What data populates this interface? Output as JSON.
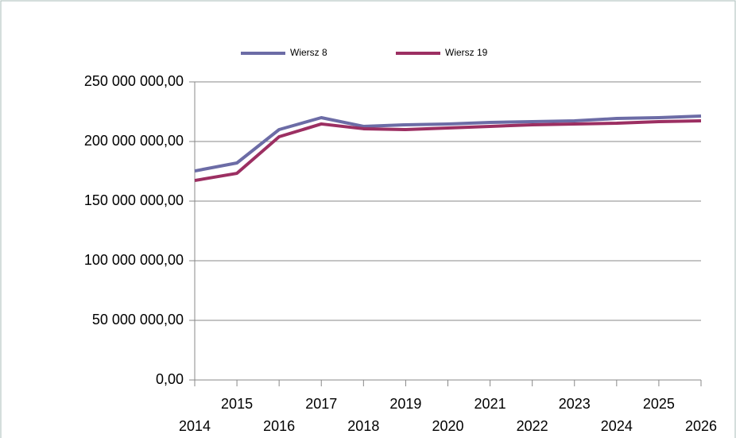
{
  "chart_data": {
    "type": "line",
    "categories": [
      "2014",
      "2015",
      "2016",
      "2017",
      "2018",
      "2019",
      "2020",
      "2021",
      "2022",
      "2023",
      "2024",
      "2025",
      "2026"
    ],
    "series": [
      {
        "name": "Wiersz 8",
        "color": "#6c6ca6",
        "values": [
          175300000,
          182000000,
          210000000,
          220000000,
          212700000,
          214000000,
          214700000,
          216000000,
          216700000,
          217300000,
          219300000,
          220000000,
          221300000
        ]
      },
      {
        "name": "Wiersz 19",
        "color": "#9c2f62",
        "values": [
          167300000,
          173300000,
          204000000,
          214700000,
          210700000,
          210000000,
          211300000,
          212700000,
          214000000,
          214700000,
          215300000,
          216700000,
          217300000
        ]
      }
    ],
    "ylim": [
      0,
      250000000
    ],
    "yticks": [
      {
        "value": 0,
        "label": "0,00"
      },
      {
        "value": 50000000,
        "label": "50 000 000,00"
      },
      {
        "value": 100000000,
        "label": "100 000 000,00"
      },
      {
        "value": 150000000,
        "label": "150 000 000,00"
      },
      {
        "value": 200000000,
        "label": "200 000 000,00"
      },
      {
        "value": 250000000,
        "label": "250 000 000,00"
      }
    ],
    "grid": true,
    "legend": "top"
  }
}
